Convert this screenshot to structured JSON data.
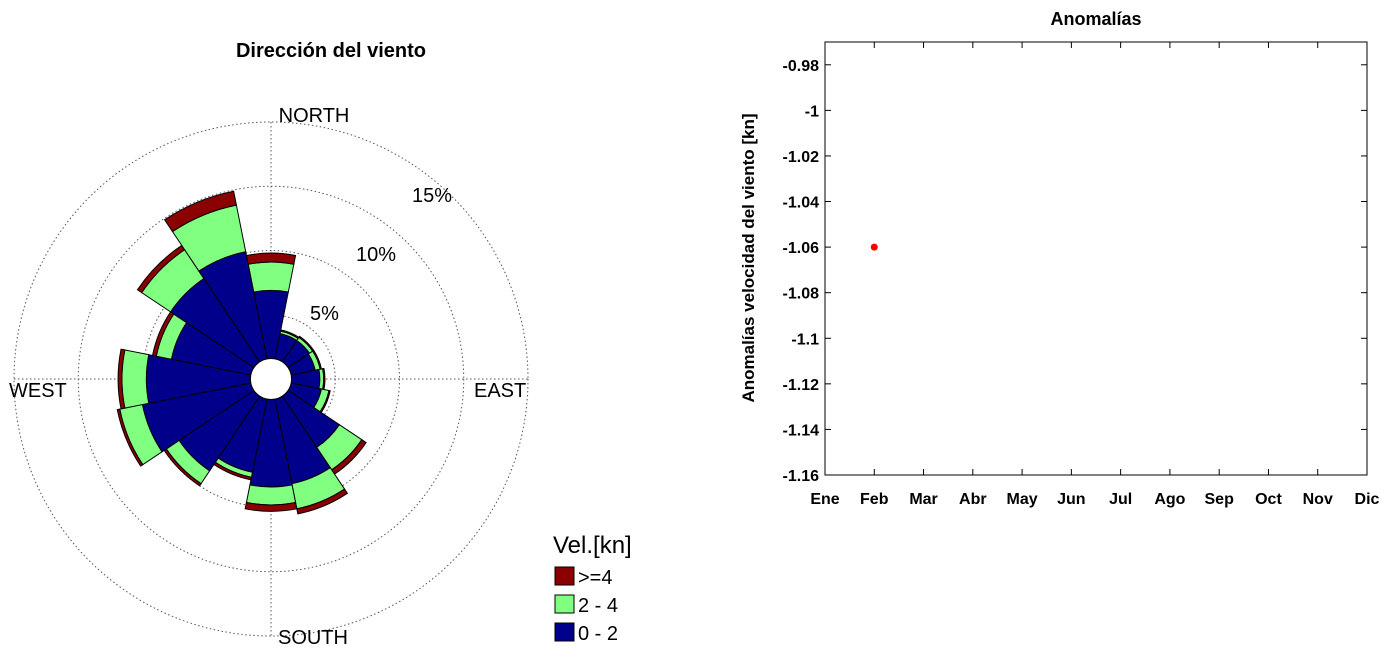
{
  "chart_data": [
    {
      "type": "wind-rose",
      "title": "Dirección del viento",
      "directions": [
        "NORTH",
        "EAST",
        "SOUTH",
        "WEST"
      ],
      "radial_ticks": [
        "5%",
        "10%",
        "15%"
      ],
      "radial_tick_values": [
        5,
        10,
        15
      ],
      "rmax": 20,
      "inner_hole": 1.6,
      "sector_width_deg": 22.5,
      "legend": {
        "title": "Vel.[kn]",
        "placement": "bottom-right",
        "entries": [
          {
            "name": ">=4",
            "color": "#8b0000"
          },
          {
            "name": "2 - 4",
            "color": "#80ff80"
          },
          {
            "name": "0 - 2",
            "color": "#00008b"
          }
        ]
      },
      "sectors": [
        {
          "dir_deg": 0,
          "bins": [
            5.3,
            2.2,
            0.7
          ]
        },
        {
          "dir_deg": 22.5,
          "bins": [
            2.0,
            0.2,
            0.1
          ]
        },
        {
          "dir_deg": 45,
          "bins": [
            2.0,
            0.3,
            0.1
          ]
        },
        {
          "dir_deg": 67.5,
          "bins": [
            1.9,
            0.4,
            0.1
          ]
        },
        {
          "dir_deg": 90,
          "bins": [
            2.2,
            0.3,
            0.1
          ]
        },
        {
          "dir_deg": 112.5,
          "bins": [
            2.4,
            0.6,
            0.1
          ]
        },
        {
          "dir_deg": 135,
          "bins": [
            4.8,
            2.1,
            0.4
          ]
        },
        {
          "dir_deg": 157.5,
          "bins": [
            6.7,
            2.0,
            0.4
          ]
        },
        {
          "dir_deg": 180,
          "bins": [
            6.8,
            1.4,
            0.5
          ]
        },
        {
          "dir_deg": 202.5,
          "bins": [
            5.8,
            0.4,
            0.2
          ]
        },
        {
          "dir_deg": 225,
          "bins": [
            7.0,
            1.2,
            0.2
          ]
        },
        {
          "dir_deg": 247.5,
          "bins": [
            8.6,
            1.8,
            0.2
          ]
        },
        {
          "dir_deg": 270,
          "bins": [
            8.1,
            1.9,
            0.3
          ]
        },
        {
          "dir_deg": 292.5,
          "bins": [
            6.3,
            1.2,
            0.3
          ]
        },
        {
          "dir_deg": 315,
          "bins": [
            7.8,
            2.7,
            0.4
          ]
        },
        {
          "dir_deg": 337.5,
          "bins": [
            8.5,
            3.7,
            1.1
          ]
        }
      ]
    },
    {
      "type": "scatter",
      "title": "Anomalías",
      "xlabel": "",
      "ylabel": "Anomalías velocidad del viento [kn]",
      "categories": [
        "Ene",
        "Feb",
        "Mar",
        "Abr",
        "May",
        "Jun",
        "Jul",
        "Ago",
        "Sep",
        "Oct",
        "Nov",
        "Dic"
      ],
      "y_ticks": [
        "-0.98",
        "-1",
        "-1.02",
        "-1.04",
        "-1.06",
        "-1.08",
        "-1.1",
        "-1.12",
        "-1.14",
        "-1.16"
      ],
      "ylim": [
        -1.16,
        -0.97
      ],
      "grid": false,
      "points": [
        {
          "x": "Feb",
          "y": -1.06,
          "color": "#ff0000"
        }
      ]
    }
  ]
}
